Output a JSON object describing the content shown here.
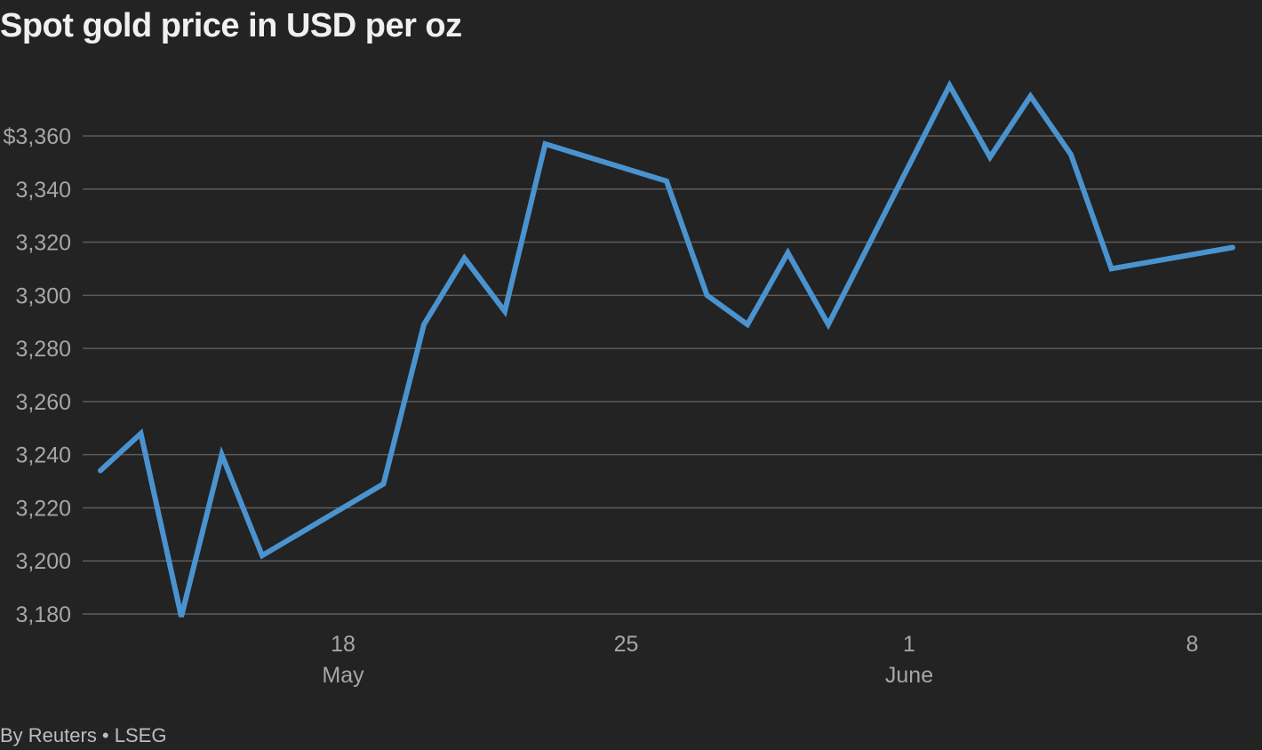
{
  "title": "Spot gold price in USD per oz",
  "source": "By Reuters • LSEG",
  "colors": {
    "background": "#232323",
    "line": "#4a93cf",
    "grid": "#5c5c5c",
    "axis_text": "#a6a6a6",
    "title": "#f0f0f0"
  },
  "chart_data": {
    "type": "line",
    "title": "Spot gold price in USD per oz",
    "xlabel": "",
    "ylabel": "",
    "ylim": [
      3180,
      3360
    ],
    "y_ticks": [
      {
        "value": 3360,
        "label": "$3,360"
      },
      {
        "value": 3340,
        "label": "3,340"
      },
      {
        "value": 3320,
        "label": "3,320"
      },
      {
        "value": 3300,
        "label": "3,300"
      },
      {
        "value": 3280,
        "label": "3,280"
      },
      {
        "value": 3260,
        "label": "3,260"
      },
      {
        "value": 3240,
        "label": "3,240"
      },
      {
        "value": 3220,
        "label": "3,220"
      },
      {
        "value": 3200,
        "label": "3,200"
      },
      {
        "value": 3180,
        "label": "3,180"
      }
    ],
    "x_ticks": [
      {
        "date": "2025-05-18",
        "label": "18",
        "month": "May"
      },
      {
        "date": "2025-05-25",
        "label": "25",
        "month": ""
      },
      {
        "date": "2025-06-01",
        "label": "1",
        "month": "June"
      },
      {
        "date": "2025-06-08",
        "label": "8",
        "month": ""
      }
    ],
    "grid": true,
    "legend": "none",
    "series": [
      {
        "points": [
          {
            "x": "2025-05-12",
            "y": 3234
          },
          {
            "x": "2025-05-13",
            "y": 3248
          },
          {
            "x": "2025-05-14",
            "y": 3179
          },
          {
            "x": "2025-05-15",
            "y": 3240
          },
          {
            "x": "2025-05-16",
            "y": 3202
          },
          {
            "x": "2025-05-19",
            "y": 3229
          },
          {
            "x": "2025-05-20",
            "y": 3289
          },
          {
            "x": "2025-05-21",
            "y": 3314
          },
          {
            "x": "2025-05-22",
            "y": 3294
          },
          {
            "x": "2025-05-23",
            "y": 3357
          },
          {
            "x": "2025-05-26",
            "y": 3343
          },
          {
            "x": "2025-05-27",
            "y": 3300
          },
          {
            "x": "2025-05-28",
            "y": 3289
          },
          {
            "x": "2025-05-29",
            "y": 3316
          },
          {
            "x": "2025-05-30",
            "y": 3289
          },
          {
            "x": "2025-06-02",
            "y": 3379
          },
          {
            "x": "2025-06-03",
            "y": 3352
          },
          {
            "x": "2025-06-04",
            "y": 3375
          },
          {
            "x": "2025-06-05",
            "y": 3353
          },
          {
            "x": "2025-06-06",
            "y": 3310
          },
          {
            "x": "2025-06-09",
            "y": 3318
          }
        ]
      }
    ]
  }
}
